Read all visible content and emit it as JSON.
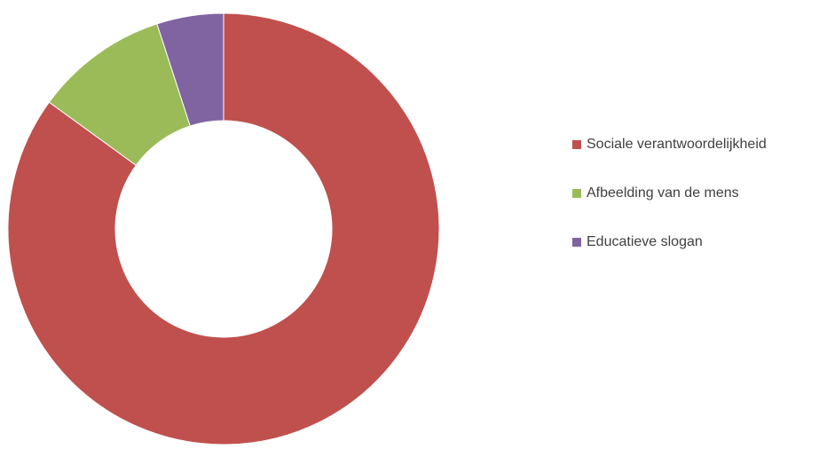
{
  "chart_data": {
    "type": "pie",
    "variant": "donut",
    "title": "",
    "legend_position": "right",
    "series": [
      {
        "values": [
          85,
          10,
          5
        ]
      }
    ],
    "categories": [
      "Sociale verantwoordelijkheid",
      "Afbeelding van de mens",
      "Educatieve slogan"
    ],
    "colors": [
      "#c0504d",
      "#9bbb59",
      "#8064a2"
    ]
  }
}
